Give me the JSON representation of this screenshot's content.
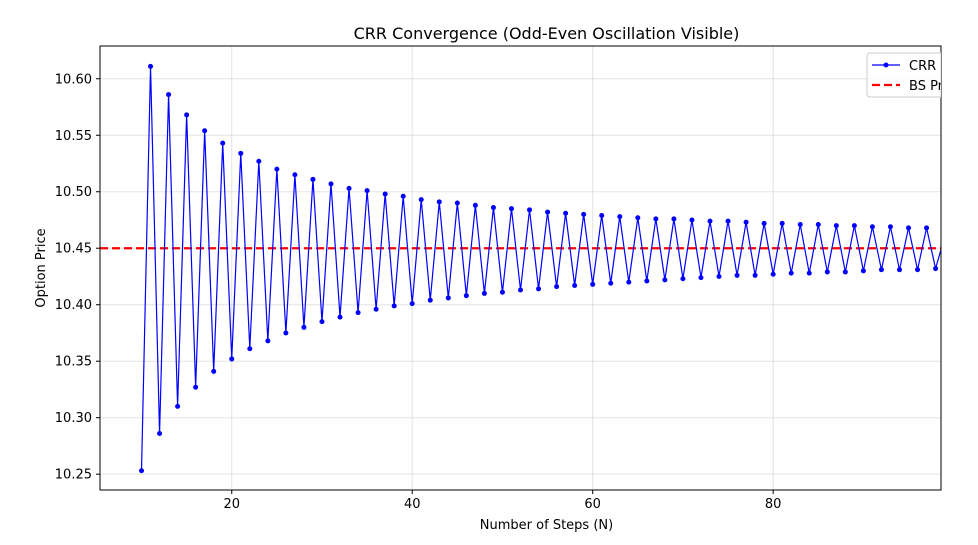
{
  "chart_data": {
    "type": "line",
    "title": "CRR Convergence (Odd-Even Oscillation Visible)",
    "xlabel": "Number of Steps (N)",
    "ylabel": "Option Price",
    "xlim": [
      5.4,
      98.6
    ],
    "ylim": [
      10.236,
      10.629
    ],
    "xticks": [
      20,
      40,
      60,
      80
    ],
    "xtick_labels": [
      "20",
      "40",
      "60",
      "80"
    ],
    "yticks": [
      10.25,
      10.3,
      10.35,
      10.4,
      10.45,
      10.5,
      10.55,
      10.6
    ],
    "ytick_labels": [
      "10.25",
      "10.30",
      "10.35",
      "10.40",
      "10.45",
      "10.50",
      "10.55",
      "10.60"
    ],
    "grid": true,
    "legend_position": "top-right",
    "series": [
      {
        "name": "CRR",
        "color": "#0000ff",
        "style": "line-with-markers",
        "x": [
          10,
          11,
          12,
          13,
          14,
          15,
          16,
          17,
          18,
          19,
          20,
          21,
          22,
          23,
          24,
          25,
          26,
          27,
          28,
          29,
          30,
          31,
          32,
          33,
          34,
          35,
          36,
          37,
          38,
          39,
          40,
          41,
          42,
          43,
          44,
          45,
          46,
          47,
          48,
          49,
          50,
          51,
          52,
          53,
          54,
          55,
          56,
          57,
          58,
          59,
          60,
          61,
          62,
          63,
          64,
          65,
          66,
          67,
          68,
          69,
          70,
          71,
          72,
          73,
          74,
          75,
          76,
          77,
          78,
          79,
          80,
          81,
          82,
          83,
          84,
          85,
          86,
          87,
          88,
          89,
          90,
          91,
          92,
          93,
          94,
          95,
          96,
          97,
          98,
          99
        ],
        "y": [
          10.253,
          10.611,
          10.286,
          10.586,
          10.31,
          10.568,
          10.327,
          10.554,
          10.341,
          10.543,
          10.352,
          10.534,
          10.361,
          10.527,
          10.368,
          10.52,
          10.375,
          10.515,
          10.38,
          10.511,
          10.385,
          10.507,
          10.389,
          10.503,
          10.393,
          10.501,
          10.396,
          10.498,
          10.399,
          10.496,
          10.401,
          10.493,
          10.404,
          10.491,
          10.406,
          10.49,
          10.408,
          10.488,
          10.41,
          10.486,
          10.411,
          10.485,
          10.413,
          10.484,
          10.414,
          10.482,
          10.416,
          10.481,
          10.417,
          10.48,
          10.418,
          10.479,
          10.419,
          10.478,
          10.42,
          10.477,
          10.421,
          10.476,
          10.422,
          10.476,
          10.423,
          10.475,
          10.424,
          10.474,
          10.425,
          10.474,
          10.426,
          10.473,
          10.426,
          10.472,
          10.427,
          10.472,
          10.428,
          10.471,
          10.428,
          10.471,
          10.429,
          10.47,
          10.429,
          10.47,
          10.43,
          10.469,
          10.431,
          10.469,
          10.431,
          10.468,
          10.431,
          10.468,
          10.432,
          10.46
        ]
      },
      {
        "name": "BS Pr",
        "color": "#ff0000",
        "style": "dashed",
        "y_constant": 10.45
      }
    ]
  }
}
